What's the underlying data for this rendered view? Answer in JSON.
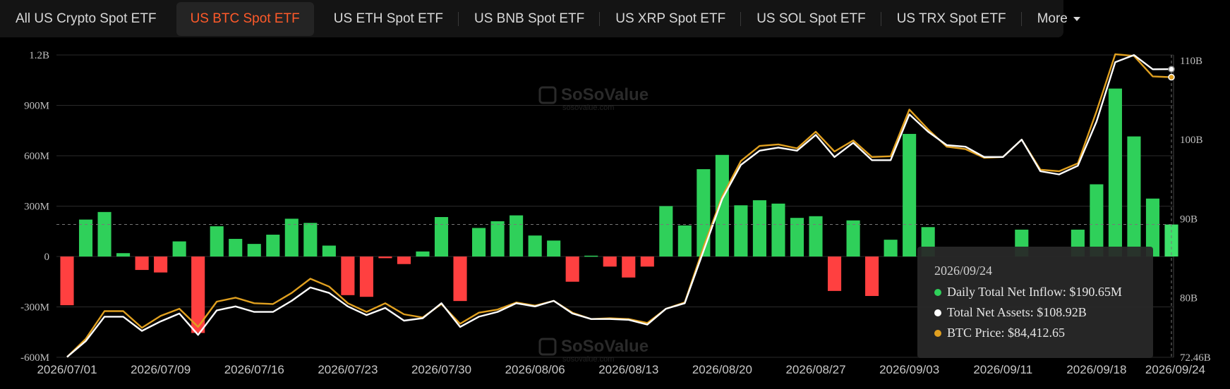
{
  "tabs": [
    {
      "label": "All US Crypto Spot ETF",
      "active": false
    },
    {
      "label": "US BTC Spot ETF",
      "active": true
    },
    {
      "label": "US ETH Spot ETF",
      "active": false
    },
    {
      "label": "US BNB Spot ETF",
      "active": false
    },
    {
      "label": "US XRP Spot ETF",
      "active": false
    },
    {
      "label": "US SOL Spot ETF",
      "active": false
    },
    {
      "label": "US TRX Spot ETF",
      "active": false
    }
  ],
  "more_label": "More",
  "watermark": {
    "brand": "SoSoValue",
    "site": "sosovalue.com"
  },
  "tooltip": {
    "date": "2026/09/24",
    "rows": [
      {
        "label": "Daily Total Net Inflow: $190.65M",
        "color": "#2fd05a"
      },
      {
        "label": "Total Net Assets: $108.92B",
        "color": "#ffffff"
      },
      {
        "label": "BTC Price: $84,412.65",
        "color": "#e0a020"
      }
    ]
  },
  "chart_data": {
    "type": "bar",
    "left_axis": {
      "ticks": [
        "1.2B",
        "900M",
        "600M",
        "300M",
        "0",
        "-300M",
        "-600M"
      ],
      "values": [
        1200,
        900,
        600,
        300,
        0,
        -300,
        -600
      ],
      "unit": "M USD"
    },
    "right_axis": {
      "ticks": [
        "110B",
        "100B",
        "90B",
        "80B",
        "72.46B"
      ],
      "values": [
        110,
        100,
        90,
        80,
        72.46
      ],
      "unit": "B USD"
    },
    "x_ticks": [
      {
        "label": "2026/07/01",
        "index": 0
      },
      {
        "label": "2026/07/09",
        "index": 5
      },
      {
        "label": "2026/07/16",
        "index": 10
      },
      {
        "label": "2026/07/23",
        "index": 15
      },
      {
        "label": "2026/07/30",
        "index": 20
      },
      {
        "label": "2026/08/06",
        "index": 25
      },
      {
        "label": "2026/08/13",
        "index": 30
      },
      {
        "label": "2026/08/20",
        "index": 35
      },
      {
        "label": "2026/08/27",
        "index": 40
      },
      {
        "label": "2026/09/03",
        "index": 45
      },
      {
        "label": "2026/09/11",
        "index": 50
      },
      {
        "label": "2026/09/18",
        "index": 55
      },
      {
        "label": "2026/09/24",
        "index": 59
      }
    ],
    "series": [
      {
        "name": "Daily Total Net Inflow",
        "axis": "left",
        "values": [
          -290,
          220,
          265,
          20,
          -80,
          -95,
          90,
          -455,
          180,
          105,
          75,
          130,
          225,
          200,
          65,
          -230,
          -240,
          -10,
          -45,
          30,
          235,
          -265,
          170,
          210,
          245,
          125,
          95,
          -150,
          5,
          -60,
          -125,
          -60,
          300,
          185,
          520,
          605,
          305,
          335,
          315,
          230,
          240,
          -205,
          215,
          -235,
          100,
          730,
          175,
          0,
          0,
          0,
          0,
          160,
          0,
          0,
          160,
          430,
          1000,
          715,
          345,
          190.65
        ],
        "colors": {
          "positive": "#2fd05a",
          "negative": "#ff4040"
        }
      },
      {
        "name": "Total Net Assets",
        "axis": "right",
        "color": "#ffffff",
        "values": [
          72.5,
          74.5,
          77.6,
          77.6,
          75.8,
          77.0,
          78.0,
          75.3,
          78.4,
          78.9,
          78.2,
          78.2,
          79.6,
          81.3,
          80.6,
          78.9,
          77.8,
          78.7,
          77.1,
          77.4,
          79.3,
          76.3,
          77.6,
          78.2,
          79.3,
          78.9,
          79.6,
          78.0,
          77.3,
          77.3,
          77.2,
          76.6,
          78.6,
          79.3,
          85.9,
          92.5,
          96.8,
          98.6,
          99.0,
          98.6,
          100.6,
          97.8,
          99.6,
          97.4,
          97.4,
          103.2,
          101.0,
          99.3,
          99.1,
          97.8,
          97.8,
          100.0,
          96.0,
          95.6,
          96.7,
          102.3,
          109.8,
          110.7,
          108.9,
          108.92
        ]
      },
      {
        "name": "BTC Price",
        "axis": "right",
        "color": "#e0a020",
        "values": [
          72.5,
          74.8,
          78.3,
          78.3,
          76.2,
          77.7,
          78.6,
          76.3,
          79.5,
          80.0,
          79.3,
          79.2,
          80.6,
          82.4,
          81.4,
          79.3,
          78.2,
          79.3,
          77.9,
          77.5,
          79.2,
          76.7,
          78.1,
          78.5,
          79.4,
          79.0,
          79.6,
          78.1,
          77.3,
          77.4,
          77.3,
          76.8,
          78.6,
          79.4,
          86.4,
          92.8,
          97.3,
          99.2,
          99.4,
          98.9,
          101.0,
          98.5,
          99.9,
          97.8,
          97.9,
          103.8,
          101.3,
          99.1,
          98.8,
          97.7,
          97.8,
          100.0,
          96.2,
          96.0,
          97.0,
          103.6,
          110.8,
          110.6,
          108.0,
          107.9
        ]
      }
    ]
  }
}
